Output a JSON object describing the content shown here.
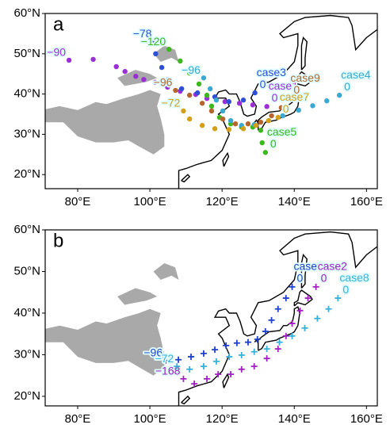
{
  "chart_data": [
    {
      "type": "map-tracks",
      "panel_label": "a",
      "marker": "dot",
      "xlim": [
        71,
        163
      ],
      "ylim": [
        16.5,
        60
      ],
      "xticks": [
        {
          "value": 80,
          "label": "80°E"
        },
        {
          "value": 100,
          "label": "100°E"
        },
        {
          "value": 120,
          "label": "120°E"
        },
        {
          "value": 140,
          "label": "140°E"
        },
        {
          "value": 160,
          "label": "160°E"
        }
      ],
      "yticks": [
        {
          "value": 20,
          "label": "20°N"
        },
        {
          "value": 30,
          "label": "30°N"
        },
        {
          "value": 40,
          "label": "40°N"
        },
        {
          "value": 50,
          "label": "50°N"
        },
        {
          "value": 60,
          "label": "60°N"
        }
      ],
      "series": [
        {
          "name": "case1",
          "color": "#9a2fd6",
          "start_label": "−90",
          "end_label": "0",
          "x": [
            77.6,
            84.3,
            90.7,
            93.1,
            96.1,
            98.3,
            101.4,
            104.9,
            108.4,
            112.7,
            115.8,
            120.8,
            124.8,
            128.5,
            132.4
          ],
          "y": [
            48.4,
            48.6,
            46.8,
            45.6,
            44.4,
            43.6,
            42.9,
            41.7,
            40.7,
            39.9,
            38.9,
            38.1,
            37.7,
            37.3,
            36.9
          ]
        },
        {
          "name": "case3",
          "color": "#2f4fd8",
          "start_label": "−78",
          "end_label": "0",
          "x": [
            101.4,
            101.6,
            103.3,
            105.1,
            108.8,
            113.2,
            118.0,
            121.9,
            125.9,
            129.1
          ],
          "y": [
            53.1,
            50.0,
            46.6,
            43.6,
            41.3,
            40.3,
            39.3,
            38.1,
            38.5,
            40.3
          ]
        },
        {
          "name": "case5",
          "color": "#3cb81f",
          "start_label": "−120",
          "end_label": "0",
          "x": [
            105.3,
            108.4,
            111,
            113.6,
            115.8,
            117.1,
            119.3,
            122.4,
            125.4,
            128.5,
            130.7,
            131.1,
            132
          ],
          "y": [
            51.1,
            48.2,
            45.2,
            42.5,
            39.7,
            37,
            34.2,
            32.6,
            31.8,
            31.8,
            31,
            27.9,
            25.5
          ]
        },
        {
          "name": "case4",
          "color": "#3aa8d0",
          "start_label": "−96",
          "end_label": "0",
          "x": [
            114.9,
            116.7,
            118.4,
            120.2,
            122.4,
            125.4,
            128.9,
            132.9,
            136.8,
            141.2,
            145.1,
            149,
            152.5
          ],
          "y": [
            44,
            41.3,
            38.5,
            35.8,
            33.4,
            32.2,
            32.4,
            33.4,
            34.6,
            36,
            37.1,
            38.3,
            39.7
          ]
        },
        {
          "name": "case9",
          "color": "#b5652d",
          "start_label": "−96",
          "end_label": "0",
          "x": [
            107.1,
            111,
            114.5,
            117.1,
            120.2,
            123.7,
            127.2,
            130.7,
            133.7,
            136.4,
            138.5
          ],
          "y": [
            40.9,
            39.7,
            37.7,
            35.8,
            33.8,
            32.6,
            32.6,
            33,
            34.6,
            36.6,
            38.9
          ]
        },
        {
          "name": "case7",
          "color": "#d4a017",
          "start_label": "−72",
          "end_label": "0",
          "x": [
            109.3,
            111,
            114.5,
            118,
            121.9,
            125.9,
            129.4,
            132.9,
            135.5
          ],
          "y": [
            35.8,
            33.8,
            32.2,
            31.4,
            31.2,
            31.4,
            32.2,
            33.4,
            34.2
          ]
        }
      ]
    },
    {
      "type": "map-tracks",
      "panel_label": "b",
      "marker": "cross",
      "xlim": [
        71,
        163
      ],
      "ylim": [
        17.7,
        60
      ],
      "xticks": [
        {
          "value": 80,
          "label": "80°E"
        },
        {
          "value": 100,
          "label": "100°E"
        },
        {
          "value": 120,
          "label": "120°E"
        },
        {
          "value": 140,
          "label": "140°E"
        },
        {
          "value": 160,
          "label": "160°E"
        }
      ],
      "yticks": [
        {
          "value": 20,
          "label": "20°N"
        },
        {
          "value": 30,
          "label": "30°N"
        },
        {
          "value": 40,
          "label": "40°N"
        },
        {
          "value": 50,
          "label": "50°N"
        },
        {
          "value": 60,
          "label": "60°N"
        }
      ],
      "series": [
        {
          "name": "case6",
          "color": "#1f3fcc",
          "start_label": "−96",
          "end_label": "0",
          "x": [
            104.4,
            107.9,
            111.4,
            114.9,
            118,
            121.1,
            124.1,
            127.2,
            129.8,
            132,
            133.7,
            135.5,
            137.7,
            139.4
          ],
          "y": [
            28.6,
            28.8,
            29.5,
            30.3,
            31.2,
            32.2,
            32.8,
            33,
            33.7,
            35.6,
            38.3,
            41,
            43.6,
            46.3
          ]
        },
        {
          "name": "case2",
          "color": "#a020c0",
          "start_label": "−168",
          "end_label": "0",
          "x": [
            109.3,
            112.3,
            115.8,
            118.9,
            122.4,
            125.4,
            128.9,
            132.4,
            135.5,
            137.7,
            139.4,
            141.6,
            143.8,
            146
          ],
          "y": [
            24.2,
            23.0,
            24.2,
            25.3,
            25.3,
            26.5,
            27.2,
            29.1,
            31.4,
            34.5,
            37.5,
            40.6,
            43.6,
            46.3
          ]
        },
        {
          "name": "case8",
          "color": "#38b0d8",
          "start_label": "−72",
          "end_label": "0",
          "x": [
            107.5,
            111,
            114.9,
            118.4,
            122,
            125.4,
            128.9,
            132.4,
            135.9,
            139.4,
            142.9,
            146.4,
            149.5,
            152.1
          ],
          "y": [
            27.2,
            26.5,
            27.2,
            28.4,
            29.5,
            29.9,
            30.7,
            31.4,
            33,
            34.5,
            36.4,
            38.7,
            41,
            43.6
          ]
        }
      ]
    }
  ]
}
